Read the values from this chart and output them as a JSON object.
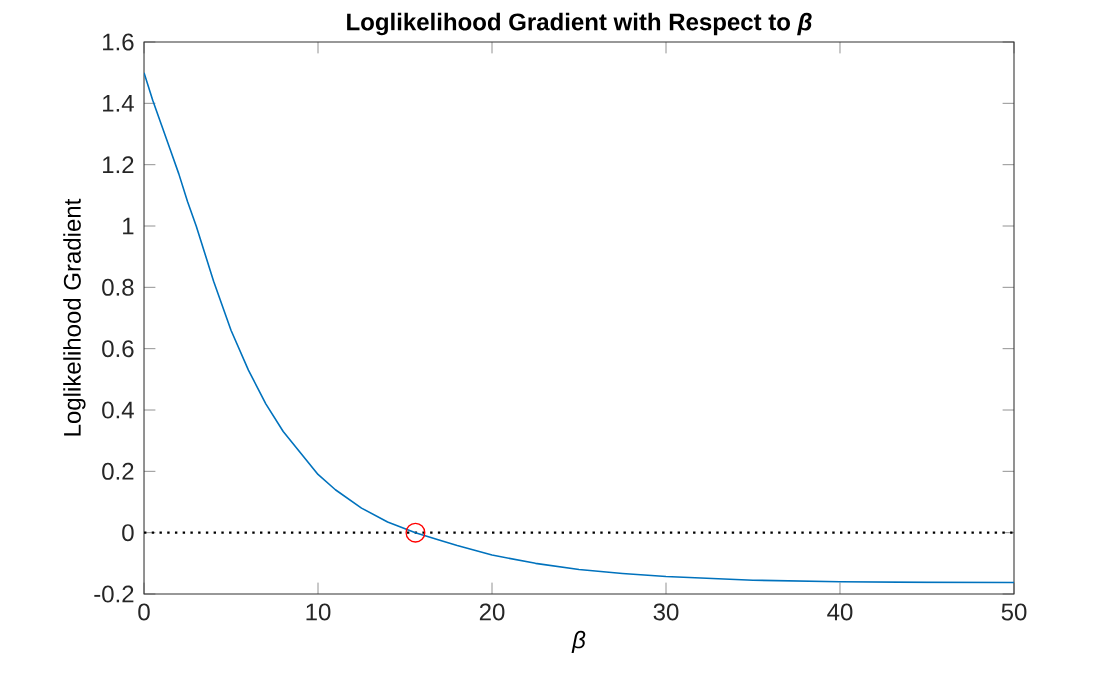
{
  "chart_data": {
    "type": "line",
    "title": "Loglikelihood Gradient with Respect to *β*",
    "xlabel": "β",
    "ylabel": "Loglikelihood Gradient",
    "xlim": [
      0,
      50
    ],
    "ylim": [
      -0.2,
      1.6
    ],
    "xticks": [
      0,
      10,
      20,
      30,
      40,
      50
    ],
    "yticks": [
      -0.2,
      0,
      0.2,
      0.4,
      0.6,
      0.8,
      1,
      1.2,
      1.4,
      1.6
    ],
    "grid": false,
    "series": [
      {
        "color": "#0072bd",
        "marker": "none",
        "x": [
          0,
          0.5,
          1,
          1.5,
          2,
          2.5,
          3,
          4,
          5,
          6,
          7,
          8,
          9,
          10,
          11,
          12.5,
          14,
          15.6,
          17,
          18,
          20,
          22.5,
          25,
          27.5,
          30,
          35,
          40,
          45,
          50
        ],
        "values": [
          1.5,
          1.41,
          1.33,
          1.25,
          1.17,
          1.08,
          1.0,
          0.82,
          0.66,
          0.53,
          0.42,
          0.33,
          0.26,
          0.19,
          0.14,
          0.08,
          0.035,
          0,
          -0.025,
          -0.042,
          -0.073,
          -0.1,
          -0.12,
          -0.133,
          -0.143,
          -0.155,
          -0.16,
          -0.162,
          -0.163
        ]
      },
      {
        "type": "scatter",
        "color": "#ff0000",
        "marker": "circle",
        "x": [
          15.6
        ],
        "values": [
          0
        ]
      }
    ],
    "ref_lines": [
      {
        "axis": "y",
        "value": 0,
        "color": "#000000",
        "line_style": "dotted"
      }
    ]
  }
}
